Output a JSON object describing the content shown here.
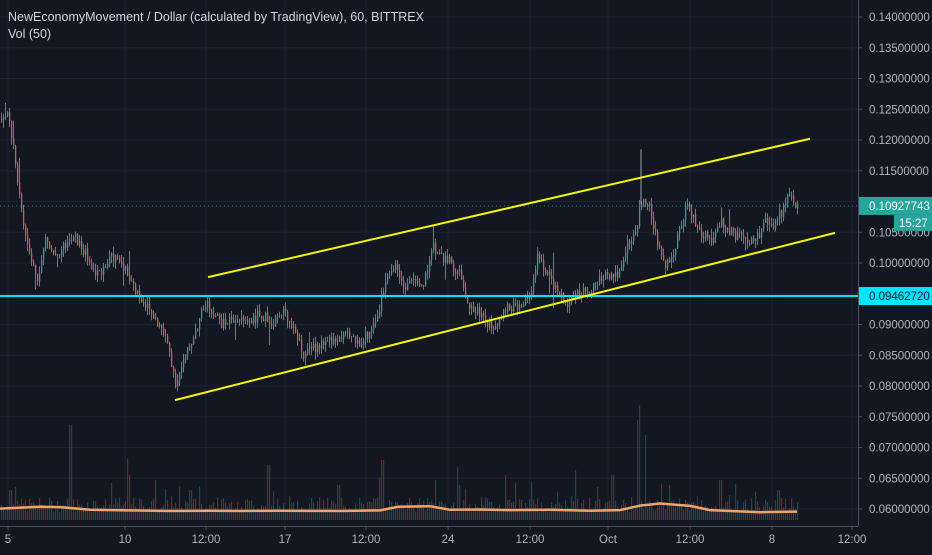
{
  "chart_data": {
    "type": "candlestick",
    "title": "NewEconomyMovement / Dollar (calculated by TradingView), 60, BITTREX",
    "indicator": "Vol (50)",
    "y_ticks": [
      "0.14000000",
      "0.13500000",
      "0.13000000",
      "0.12500000",
      "0.12000000",
      "0.11500000",
      "0.11000000",
      "0.10500000",
      "0.10000000",
      "0.09500000",
      "0.09000000",
      "0.08500000",
      "0.08000000",
      "0.07500000",
      "0.07000000",
      "0.06500000",
      "0.06000000"
    ],
    "ylim": [
      0.0585,
      0.1415
    ],
    "x_ticks": [
      "5",
      "10",
      "12:00",
      "17",
      "12:00",
      "24",
      "12:00",
      "Oct",
      "12:00",
      "8",
      "12:00"
    ],
    "current_price": "0.10927743",
    "countdown": "15:27",
    "horizontal_level": "0.09462720",
    "price_path": [
      [
        0,
        0.1235
      ],
      [
        8,
        0.1245
      ],
      [
        16,
        0.115
      ],
      [
        22,
        0.107
      ],
      [
        30,
        0.1005
      ],
      [
        38,
        0.0975
      ],
      [
        45,
        0.104
      ],
      [
        55,
        0.1015
      ],
      [
        65,
        0.103
      ],
      [
        75,
        0.104
      ],
      [
        85,
        0.1015
      ],
      [
        95,
        0.098
      ],
      [
        105,
        0.0995
      ],
      [
        112,
        0.101
      ],
      [
        122,
        0.1
      ],
      [
        132,
        0.0965
      ],
      [
        140,
        0.0945
      ],
      [
        150,
        0.092
      ],
      [
        160,
        0.0895
      ],
      [
        168,
        0.0865
      ],
      [
        175,
        0.0805
      ],
      [
        180,
        0.0825
      ],
      [
        188,
        0.086
      ],
      [
        195,
        0.089
      ],
      [
        205,
        0.0935
      ],
      [
        213,
        0.092
      ],
      [
        222,
        0.09
      ],
      [
        232,
        0.091
      ],
      [
        245,
        0.0905
      ],
      [
        258,
        0.0915
      ],
      [
        272,
        0.0905
      ],
      [
        285,
        0.092
      ],
      [
        295,
        0.089
      ],
      [
        302,
        0.085
      ],
      [
        312,
        0.086
      ],
      [
        322,
        0.087
      ],
      [
        335,
        0.0875
      ],
      [
        348,
        0.088
      ],
      [
        358,
        0.087
      ],
      [
        368,
        0.0885
      ],
      [
        378,
        0.092
      ],
      [
        387,
        0.0985
      ],
      [
        395,
        0.1
      ],
      [
        403,
        0.096
      ],
      [
        412,
        0.0975
      ],
      [
        422,
        0.0955
      ],
      [
        432,
        0.103
      ],
      [
        441,
        0.101
      ],
      [
        450,
        0.1
      ],
      [
        460,
        0.098
      ],
      [
        470,
        0.0925
      ],
      [
        480,
        0.092
      ],
      [
        490,
        0.0895
      ],
      [
        500,
        0.0915
      ],
      [
        510,
        0.093
      ],
      [
        520,
        0.0925
      ],
      [
        530,
        0.095
      ],
      [
        538,
        0.1015
      ],
      [
        546,
        0.0985
      ],
      [
        556,
        0.0955
      ],
      [
        566,
        0.0935
      ],
      [
        576,
        0.095
      ],
      [
        586,
        0.0955
      ],
      [
        596,
        0.0965
      ],
      [
        606,
        0.098
      ],
      [
        618,
        0.0985
      ],
      [
        628,
        0.1035
      ],
      [
        636,
        0.1055
      ],
      [
        642,
        0.1115
      ],
      [
        650,
        0.1085
      ],
      [
        657,
        0.103
      ],
      [
        664,
        0.0995
      ],
      [
        671,
        0.101
      ],
      [
        680,
        0.106
      ],
      [
        686,
        0.1095
      ],
      [
        692,
        0.1075
      ],
      [
        700,
        0.105
      ],
      [
        710,
        0.1035
      ],
      [
        720,
        0.107
      ],
      [
        728,
        0.105
      ],
      [
        737,
        0.1045
      ],
      [
        747,
        0.103
      ],
      [
        757,
        0.104
      ],
      [
        765,
        0.1075
      ],
      [
        773,
        0.1055
      ],
      [
        780,
        0.108
      ],
      [
        787,
        0.1105
      ],
      [
        797,
        0.1093
      ]
    ],
    "channel_upper": {
      "x1": 208,
      "y1": 0.0977,
      "x2": 810,
      "y2": 0.1202
    },
    "channel_lower": {
      "x1": 175,
      "y1": 0.0777,
      "x2": 835,
      "y2": 0.1049
    },
    "volume_peaks": [
      [
        10,
        0.3
      ],
      [
        70,
        0.95
      ],
      [
        128,
        0.45
      ],
      [
        155,
        0.4
      ],
      [
        190,
        0.3
      ],
      [
        268,
        0.55
      ],
      [
        338,
        0.35
      ],
      [
        382,
        0.6
      ],
      [
        435,
        0.4
      ],
      [
        458,
        0.35
      ],
      [
        505,
        0.45
      ],
      [
        575,
        0.5
      ],
      [
        612,
        0.45
      ],
      [
        638,
        1.0
      ],
      [
        645,
        0.85
      ],
      [
        720,
        0.4
      ],
      [
        778,
        0.3
      ]
    ],
    "volume_ma": [
      [
        0,
        0.38
      ],
      [
        40,
        0.44
      ],
      [
        60,
        0.43
      ],
      [
        90,
        0.34
      ],
      [
        130,
        0.32
      ],
      [
        170,
        0.3
      ],
      [
        210,
        0.31
      ],
      [
        240,
        0.3
      ],
      [
        280,
        0.31
      ],
      [
        340,
        0.3
      ],
      [
        380,
        0.32
      ],
      [
        398,
        0.44
      ],
      [
        430,
        0.46
      ],
      [
        450,
        0.34
      ],
      [
        480,
        0.35
      ],
      [
        510,
        0.33
      ],
      [
        550,
        0.34
      ],
      [
        590,
        0.31
      ],
      [
        620,
        0.33
      ],
      [
        640,
        0.48
      ],
      [
        660,
        0.55
      ],
      [
        690,
        0.47
      ],
      [
        710,
        0.33
      ],
      [
        760,
        0.26
      ],
      [
        797,
        0.28
      ]
    ]
  }
}
